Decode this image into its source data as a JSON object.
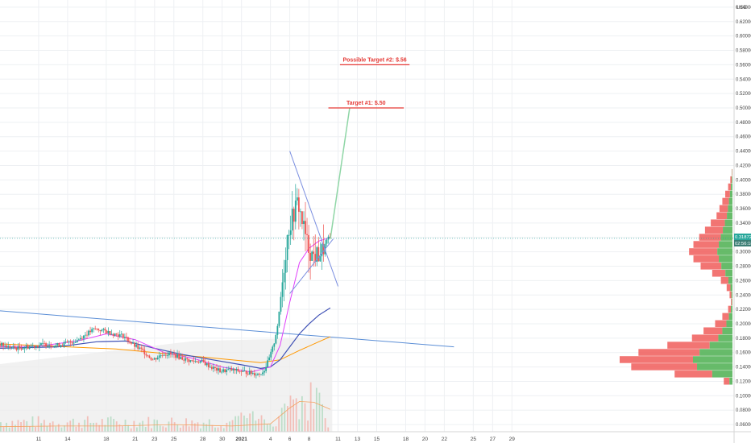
{
  "chart_data": {
    "type": "candlestick",
    "currency": "USD",
    "y_axis": {
      "scale": "linear",
      "range": [
        0.05,
        0.65
      ],
      "ticks": [
        0.06,
        0.08,
        0.1,
        0.12,
        0.14,
        0.16,
        0.18,
        0.2,
        0.22,
        0.24,
        0.26,
        0.28,
        0.3,
        0.32,
        0.34,
        0.36,
        0.38,
        0.4,
        0.42,
        0.44,
        0.46,
        0.48,
        0.5,
        0.52,
        0.54,
        0.56,
        0.58,
        0.6,
        0.62,
        0.64
      ],
      "tick_labels": [
        "0.060000",
        "0.080000",
        "0.100000",
        "0.120000",
        "0.140000",
        "0.160000",
        "0.180000",
        "0.200000",
        "0.220000",
        "0.240000",
        "0.260000",
        "0.280000",
        "0.300000",
        "0.320000",
        "0.340000",
        "0.360000",
        "0.380000",
        "0.400000",
        "0.420000",
        "0.440000",
        "0.460000",
        "0.480000",
        "0.500000",
        "0.520000",
        "0.540000",
        "0.560000",
        "0.580000",
        "0.600000",
        "0.620000",
        "0.640000"
      ]
    },
    "x_axis": {
      "range": [
        -4,
        72
      ],
      "ticks": [
        {
          "day": 0,
          "label": "11"
        },
        {
          "day": 3,
          "label": "14"
        },
        {
          "day": 7,
          "label": "18"
        },
        {
          "day": 10,
          "label": "21"
        },
        {
          "day": 12,
          "label": "23"
        },
        {
          "day": 14,
          "label": "25"
        },
        {
          "day": 17,
          "label": "28"
        },
        {
          "day": 19,
          "label": "30"
        },
        {
          "day": 21,
          "label": "2021"
        },
        {
          "day": 24,
          "label": "4"
        },
        {
          "day": 26,
          "label": "6"
        },
        {
          "day": 28,
          "label": "8"
        },
        {
          "day": 31,
          "label": "11"
        },
        {
          "day": 33,
          "label": "13"
        },
        {
          "day": 35,
          "label": "15"
        },
        {
          "day": 38,
          "label": "18"
        },
        {
          "day": 40,
          "label": "20"
        },
        {
          "day": 42,
          "label": "22"
        },
        {
          "day": 45,
          "label": "25"
        },
        {
          "day": 47,
          "label": "27"
        },
        {
          "day": 49,
          "label": "29"
        }
      ]
    },
    "current_price": {
      "value": 0.3187,
      "label": "0.318721",
      "countdown": "02:56:18"
    },
    "annotations": [
      {
        "label": "Target #1: $.50",
        "price": 0.5,
        "x_range": [
          30.0,
          37.8
        ]
      },
      {
        "label": "Possible Target #2: $.56",
        "price": 0.56,
        "x_range": [
          31.2,
          38.4
        ]
      }
    ],
    "price_path": [
      [
        -4,
        0.172
      ],
      [
        -3,
        0.168
      ],
      [
        -2,
        0.166
      ],
      [
        -1,
        0.168
      ],
      [
        0,
        0.17
      ],
      [
        1,
        0.172
      ],
      [
        2,
        0.17
      ],
      [
        3,
        0.173
      ],
      [
        4,
        0.176
      ],
      [
        5,
        0.185
      ],
      [
        6,
        0.193
      ],
      [
        7,
        0.19
      ],
      [
        8,
        0.186
      ],
      [
        9,
        0.183
      ],
      [
        10,
        0.17
      ],
      [
        11,
        0.162
      ],
      [
        12,
        0.15
      ],
      [
        13,
        0.158
      ],
      [
        14,
        0.158
      ],
      [
        15,
        0.152
      ],
      [
        16,
        0.148
      ],
      [
        17,
        0.148
      ],
      [
        18,
        0.14
      ],
      [
        19,
        0.134
      ],
      [
        20,
        0.136
      ],
      [
        21,
        0.134
      ],
      [
        22,
        0.132
      ],
      [
        23,
        0.13
      ],
      [
        23.5,
        0.135
      ],
      [
        24,
        0.15
      ],
      [
        24.5,
        0.17
      ],
      [
        25,
        0.205
      ],
      [
        25.5,
        0.27
      ],
      [
        26,
        0.33
      ],
      [
        26.5,
        0.35
      ],
      [
        27,
        0.37
      ],
      [
        27.5,
        0.34
      ],
      [
        28,
        0.31
      ],
      [
        28.5,
        0.295
      ],
      [
        29,
        0.295
      ],
      [
        29.5,
        0.3
      ],
      [
        30,
        0.315
      ],
      [
        30.2,
        0.3187
      ]
    ],
    "triangle_lines": [
      {
        "from": [
          26.0,
          0.44
        ],
        "to": [
          31.0,
          0.252
        ]
      },
      {
        "from": [
          26.0,
          0.242
        ],
        "to": [
          30.5,
          0.318
        ]
      }
    ],
    "projection_line": {
      "from": [
        30.2,
        0.318
      ],
      "to": [
        32.2,
        0.5
      ]
    },
    "long_trendline": {
      "from": [
        -4,
        0.218
      ],
      "to": [
        43.0,
        0.168
      ]
    },
    "ma_fast": [
      [
        -4,
        0.168
      ],
      [
        0,
        0.169
      ],
      [
        4,
        0.176
      ],
      [
        7,
        0.186
      ],
      [
        10,
        0.178
      ],
      [
        13,
        0.16
      ],
      [
        16,
        0.152
      ],
      [
        19,
        0.14
      ],
      [
        22,
        0.133
      ],
      [
        24,
        0.14
      ],
      [
        25,
        0.17
      ],
      [
        26,
        0.23
      ],
      [
        27,
        0.285
      ],
      [
        28,
        0.305
      ],
      [
        29,
        0.315
      ],
      [
        30.2,
        0.32
      ]
    ],
    "ma_mid": [
      [
        -4,
        0.166
      ],
      [
        2,
        0.168
      ],
      [
        6,
        0.175
      ],
      [
        9,
        0.176
      ],
      [
        12,
        0.166
      ],
      [
        15,
        0.157
      ],
      [
        18,
        0.15
      ],
      [
        21,
        0.143
      ],
      [
        23,
        0.138
      ],
      [
        24,
        0.14
      ],
      [
        25,
        0.15
      ],
      [
        26,
        0.168
      ],
      [
        27,
        0.186
      ],
      [
        28,
        0.2
      ],
      [
        29,
        0.212
      ],
      [
        30.2,
        0.222
      ]
    ],
    "ma_slow": [
      [
        -4,
        0.172
      ],
      [
        3,
        0.168
      ],
      [
        8,
        0.165
      ],
      [
        12,
        0.16
      ],
      [
        16,
        0.155
      ],
      [
        20,
        0.15
      ],
      [
        23,
        0.146
      ],
      [
        25,
        0.15
      ],
      [
        27,
        0.163
      ],
      [
        29,
        0.175
      ],
      [
        30.2,
        0.182
      ]
    ],
    "volume_ma": [
      [
        -4,
        0.057
      ],
      [
        2,
        0.058
      ],
      [
        8,
        0.058
      ],
      [
        14,
        0.06
      ],
      [
        20,
        0.058
      ],
      [
        24,
        0.061
      ],
      [
        26,
        0.083
      ],
      [
        27,
        0.092
      ],
      [
        28.5,
        0.091
      ],
      [
        30.2,
        0.081
      ]
    ],
    "volume_profile": [
      {
        "price": 0.41,
        "size": 0.5
      },
      {
        "price": 0.4,
        "size": 1.5
      },
      {
        "price": 0.39,
        "size": 3
      },
      {
        "price": 0.38,
        "size": 5
      },
      {
        "price": 0.37,
        "size": 7
      },
      {
        "price": 0.36,
        "size": 9
      },
      {
        "price": 0.35,
        "size": 11
      },
      {
        "price": 0.34,
        "size": 15
      },
      {
        "price": 0.33,
        "size": 19
      },
      {
        "price": 0.32,
        "size": 23
      },
      {
        "price": 0.31,
        "size": 27
      },
      {
        "price": 0.3,
        "size": 30
      },
      {
        "price": 0.29,
        "size": 27
      },
      {
        "price": 0.28,
        "size": 22
      },
      {
        "price": 0.27,
        "size": 14
      },
      {
        "price": 0.26,
        "size": 8
      },
      {
        "price": 0.25,
        "size": 4
      },
      {
        "price": 0.24,
        "size": 2
      },
      {
        "price": 0.23,
        "size": 1
      },
      {
        "price": 0.22,
        "size": 3
      },
      {
        "price": 0.21,
        "size": 7
      },
      {
        "price": 0.2,
        "size": 12
      },
      {
        "price": 0.19,
        "size": 20
      },
      {
        "price": 0.18,
        "size": 28
      },
      {
        "price": 0.17,
        "size": 45
      },
      {
        "price": 0.16,
        "size": 65
      },
      {
        "price": 0.15,
        "size": 78
      },
      {
        "price": 0.14,
        "size": 70
      },
      {
        "price": 0.13,
        "size": 40
      },
      {
        "price": 0.12,
        "size": 6
      }
    ],
    "colors": {
      "up": "#26a69a",
      "down": "#ef5350",
      "ma_fast": "#e040fb",
      "ma_mid": "#3f51b5",
      "ma_slow": "#ff9800",
      "trendline": "#5b8ed6",
      "triangle": "#7b8fe0",
      "projection": "#8fd6a6",
      "target": "#e53935",
      "price_tag": "#26a69a",
      "profile_up": "#4caf50",
      "profile_down": "#ef5350"
    }
  }
}
